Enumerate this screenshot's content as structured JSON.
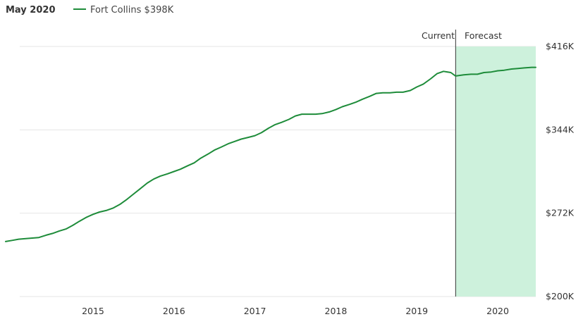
{
  "header": {
    "date": "May 2020",
    "legend_label": "Fort Collins $398K"
  },
  "markers": {
    "current": "Current",
    "forecast": "Forecast"
  },
  "colors": {
    "line": "#1e8c3a",
    "forecast_fill": "#cdf1dc",
    "divider": "#333333",
    "grid": "#e6e6e6"
  },
  "chart_data": {
    "type": "line",
    "x_label_format": "year",
    "ylim": [
      200,
      416
    ],
    "y_ticks": [
      {
        "value": 200,
        "label": "$200K"
      },
      {
        "value": 272,
        "label": "$272K"
      },
      {
        "value": 344,
        "label": "$344K"
      },
      {
        "value": 416,
        "label": "$416K"
      }
    ],
    "x_ticks": [
      {
        "value": 2015.0,
        "label": "2015"
      },
      {
        "value": 2016.0,
        "label": "2016"
      },
      {
        "value": 2017.0,
        "label": "2017"
      },
      {
        "value": 2018.0,
        "label": "2018"
      },
      {
        "value": 2019.0,
        "label": "2019"
      },
      {
        "value": 2020.0,
        "label": "2020"
      }
    ],
    "xlim": [
      2013.92,
      2020.47
    ],
    "forecast_start": 2019.48,
    "series": [
      {
        "name": "Fort Collins",
        "points": [
          [
            2013.92,
            247.5
          ],
          [
            2014.0,
            248.5
          ],
          [
            2014.08,
            249.5
          ],
          [
            2014.17,
            250.0
          ],
          [
            2014.25,
            250.5
          ],
          [
            2014.33,
            251.0
          ],
          [
            2014.42,
            253.0
          ],
          [
            2014.5,
            254.5
          ],
          [
            2014.58,
            256.5
          ],
          [
            2014.67,
            258.5
          ],
          [
            2014.75,
            261.5
          ],
          [
            2014.83,
            265.0
          ],
          [
            2014.92,
            268.5
          ],
          [
            2015.0,
            271.0
          ],
          [
            2015.08,
            273.0
          ],
          [
            2015.17,
            274.5
          ],
          [
            2015.25,
            276.5
          ],
          [
            2015.33,
            279.5
          ],
          [
            2015.42,
            284.0
          ],
          [
            2015.5,
            288.5
          ],
          [
            2015.58,
            293.0
          ],
          [
            2015.67,
            298.0
          ],
          [
            2015.75,
            301.5
          ],
          [
            2015.83,
            304.0
          ],
          [
            2015.92,
            306.0
          ],
          [
            2016.0,
            308.0
          ],
          [
            2016.08,
            310.0
          ],
          [
            2016.17,
            313.0
          ],
          [
            2016.25,
            315.5
          ],
          [
            2016.33,
            319.5
          ],
          [
            2016.42,
            323.0
          ],
          [
            2016.5,
            326.5
          ],
          [
            2016.58,
            329.0
          ],
          [
            2016.67,
            332.0
          ],
          [
            2016.75,
            334.0
          ],
          [
            2016.83,
            336.0
          ],
          [
            2016.92,
            337.5
          ],
          [
            2017.0,
            339.0
          ],
          [
            2017.08,
            341.5
          ],
          [
            2017.17,
            345.5
          ],
          [
            2017.25,
            348.5
          ],
          [
            2017.33,
            350.5
          ],
          [
            2017.42,
            353.0
          ],
          [
            2017.5,
            356.0
          ],
          [
            2017.58,
            357.5
          ],
          [
            2017.67,
            357.5
          ],
          [
            2017.75,
            357.5
          ],
          [
            2017.83,
            358.0
          ],
          [
            2017.92,
            359.5
          ],
          [
            2018.0,
            361.5
          ],
          [
            2018.08,
            364.0
          ],
          [
            2018.17,
            366.0
          ],
          [
            2018.25,
            368.0
          ],
          [
            2018.33,
            370.5
          ],
          [
            2018.42,
            373.0
          ],
          [
            2018.5,
            375.5
          ],
          [
            2018.58,
            376.0
          ],
          [
            2018.67,
            376.0
          ],
          [
            2018.75,
            376.5
          ],
          [
            2018.83,
            376.5
          ],
          [
            2018.92,
            378.0
          ],
          [
            2019.0,
            381.0
          ],
          [
            2019.08,
            383.5
          ],
          [
            2019.17,
            388.0
          ],
          [
            2019.25,
            392.5
          ],
          [
            2019.33,
            394.5
          ],
          [
            2019.42,
            393.5
          ],
          [
            2019.48,
            390.5
          ]
        ]
      },
      {
        "name": "Fort Collins",
        "forecast": true,
        "points": [
          [
            2019.48,
            390.5
          ],
          [
            2019.58,
            391.5
          ],
          [
            2019.67,
            392.0
          ],
          [
            2019.75,
            392.0
          ],
          [
            2019.83,
            393.5
          ],
          [
            2019.92,
            394.0
          ],
          [
            2020.0,
            395.0
          ],
          [
            2020.08,
            395.5
          ],
          [
            2020.17,
            396.5
          ],
          [
            2020.25,
            397.0
          ],
          [
            2020.33,
            397.5
          ],
          [
            2020.42,
            398.0
          ],
          [
            2020.47,
            398.0
          ]
        ]
      }
    ]
  }
}
